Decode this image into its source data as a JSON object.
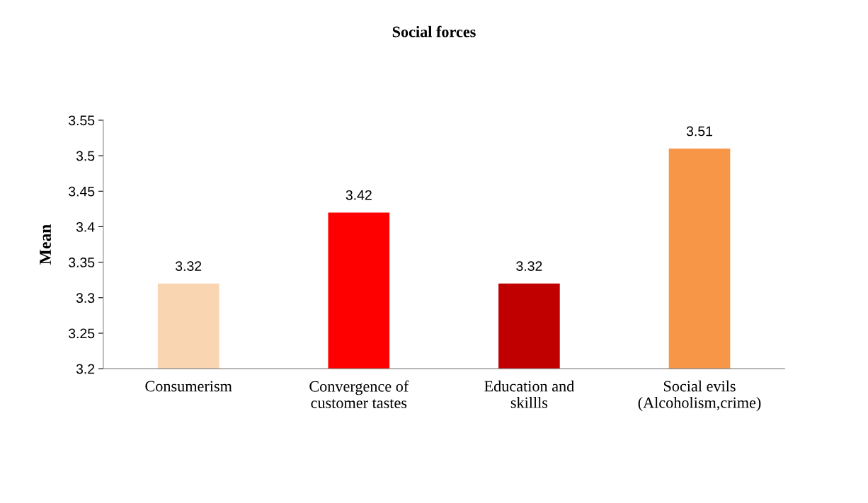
{
  "chart_data": {
    "type": "bar",
    "title": "Social forces",
    "ylabel": "Mean",
    "categories": [
      "Consumerism",
      "Convergence of\ncustomer tastes",
      "Education and\nskillls",
      "Social evils\n(Alcoholism,crime)"
    ],
    "values": [
      3.32,
      3.42,
      3.32,
      3.51
    ],
    "colors": [
      "#fad5b2",
      "#ff0000",
      "#c00000",
      "#f79646"
    ],
    "ylim": [
      3.2,
      3.55
    ],
    "yticks": [
      3.2,
      3.25,
      3.3,
      3.35,
      3.4,
      3.45,
      3.5,
      3.55
    ],
    "data_labels": true,
    "grid": false,
    "legend": false
  }
}
